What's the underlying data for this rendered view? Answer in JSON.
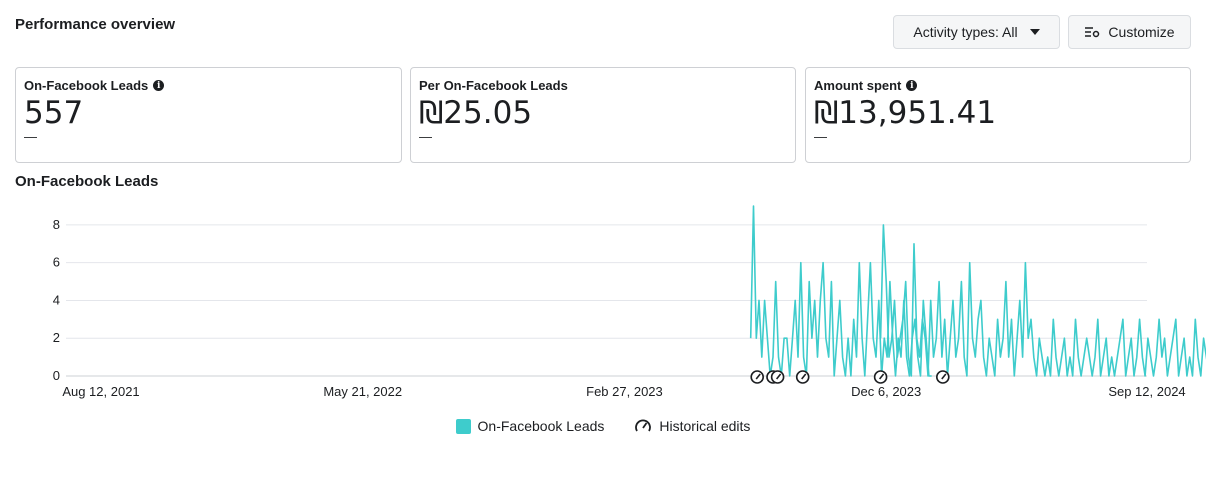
{
  "header": {
    "title": "Performance overview",
    "activity_btn": "Activity types: All",
    "customize_btn": "Customize"
  },
  "cards": [
    {
      "label": "On-Facebook Leads",
      "value": "557",
      "sub": "—",
      "info": true
    },
    {
      "label": "Per On-Facebook Leads",
      "value": "₪25.05",
      "sub": "—",
      "info": false
    },
    {
      "label": "Amount spent",
      "value": "₪13,951.41",
      "sub": "—",
      "info": true
    }
  ],
  "chart_title": "On-Facebook Leads",
  "colors": {
    "series": "#3ecccc",
    "grid": "#e4e6eb",
    "text": "#1c1e21"
  },
  "legend": {
    "series_label": "On-Facebook Leads",
    "edits_label": "Historical edits"
  },
  "chart_data": {
    "type": "line",
    "title": "",
    "xlabel": "",
    "ylabel": "",
    "x_range": [
      "2021-08-12",
      "2024-09-12"
    ],
    "ylim": [
      0,
      9
    ],
    "y_ticks": [
      0,
      2,
      4,
      6,
      8
    ],
    "x_ticks": [
      {
        "date": "2021-08-12",
        "label": "Aug 12, 2021"
      },
      {
        "date": "2022-05-21",
        "label": "May 21, 2022"
      },
      {
        "date": "2023-02-27",
        "label": "Feb 27, 2023"
      },
      {
        "date": "2023-12-06",
        "label": "Dec 6, 2023"
      },
      {
        "date": "2024-09-12",
        "label": "Sep 12, 2024"
      }
    ],
    "grid": true,
    "legend_position": "bottom-center",
    "series": [
      {
        "name": "On-Facebook Leads",
        "segments": [
          {
            "start": "2023-07-13",
            "values": [
              2,
              9,
              2,
              4,
              1,
              4,
              2,
              0,
              1,
              5,
              1,
              0,
              2,
              2,
              0,
              2,
              4,
              1,
              6,
              1,
              0,
              5,
              2,
              4,
              1,
              4,
              6,
              2,
              1,
              5,
              0,
              2,
              4,
              1,
              0,
              2,
              0,
              3,
              1,
              6,
              2,
              0,
              3,
              6,
              2,
              1,
              4,
              0,
              2,
              1,
              5,
              2,
              0,
              2,
              1,
              4,
              1,
              0,
              2,
              3,
              1,
              0,
              4,
              2,
              0,
              0
            ]
          },
          {
            "start": "2023-11-30",
            "values": [
              2,
              8,
              5,
              1,
              2,
              4,
              1,
              2,
              3,
              5,
              1,
              0,
              7,
              2,
              1,
              3,
              2,
              0,
              4,
              1,
              2,
              5,
              1,
              3,
              0,
              2,
              4,
              1,
              2,
              5,
              1,
              0,
              6,
              2,
              1,
              3,
              4,
              1,
              0,
              2,
              1,
              0,
              3,
              1,
              2,
              5,
              1,
              3,
              0,
              2,
              4,
              1,
              6,
              2,
              3,
              1,
              0,
              2,
              1,
              0,
              1,
              0,
              3,
              1,
              0,
              1,
              2,
              0,
              1,
              0,
              3,
              1,
              0,
              1,
              2,
              1,
              0,
              1,
              3,
              0,
              1,
              2,
              0,
              1,
              0,
              1,
              2,
              3,
              0,
              1,
              2,
              0,
              1,
              3,
              1,
              0,
              2,
              1,
              0,
              1,
              3,
              1,
              2,
              0,
              1,
              2,
              3,
              0,
              1,
              2,
              0,
              1,
              0,
              3,
              1,
              0,
              2,
              1,
              0,
              1,
              3,
              2,
              0,
              1,
              2,
              0,
              4,
              1,
              0,
              2,
              1,
              3,
              0,
              1,
              0,
              2,
              1,
              0,
              3,
              1,
              0,
              2,
              1,
              0,
              1,
              5,
              1,
              0,
              2,
              3,
              1,
              0,
              1,
              2,
              0,
              1,
              3,
              1,
              0,
              1,
              2,
              3,
              0,
              1,
              0,
              1,
              3,
              1,
              0,
              1,
              2,
              0,
              1,
              1,
              0,
              2,
              1,
              0,
              2,
              1
            ]
          }
        ]
      }
    ],
    "historical_edits": [
      "2023-07-20",
      "2023-08-06",
      "2023-08-11",
      "2023-09-07",
      "2023-11-30",
      "2024-02-05"
    ]
  }
}
